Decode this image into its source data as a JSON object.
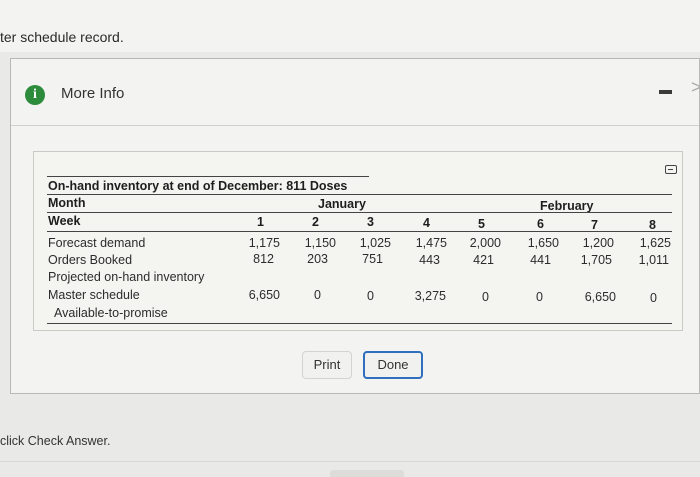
{
  "page": {
    "top_text": "ter schedule record.",
    "bottom_text": "click Check Answer."
  },
  "dialog": {
    "title": "More Info",
    "info_icon": "i",
    "minimize_icon": "minimize-icon",
    "chevron": ">",
    "table": {
      "caption": "On-hand inventory at end of December: 811 Doses",
      "month_label": "Month",
      "months": [
        "January",
        "February"
      ],
      "week_label": "Week",
      "weeks": [
        "1",
        "2",
        "3",
        "4",
        "5",
        "6",
        "7",
        "8"
      ],
      "rows": [
        {
          "label": "Forecast demand",
          "values": [
            "1,175",
            "1,150",
            "1,025",
            "1,475",
            "2,000",
            "1,650",
            "1,200",
            "1,625"
          ]
        },
        {
          "label": "Orders Booked",
          "values": [
            "812",
            "203",
            "751",
            "443",
            "421",
            "441",
            "1,705",
            "1,011"
          ]
        },
        {
          "label": "Projected on-hand inventory",
          "values": [
            "",
            "",
            "",
            "",
            "",
            "",
            "",
            ""
          ]
        },
        {
          "label": "Master schedule",
          "values": [
            "6,650",
            "0",
            "0",
            "3,275",
            "0",
            "0",
            "6,650",
            "0"
          ]
        },
        {
          "label": "Available-to-promise",
          "values": [
            "",
            "",
            "",
            "",
            "",
            "",
            "",
            ""
          ]
        }
      ]
    },
    "buttons": {
      "print": "Print",
      "done": "Done"
    }
  },
  "colors": {
    "info_icon": "#2d8b3c",
    "done_border": "#2f6fbd"
  }
}
